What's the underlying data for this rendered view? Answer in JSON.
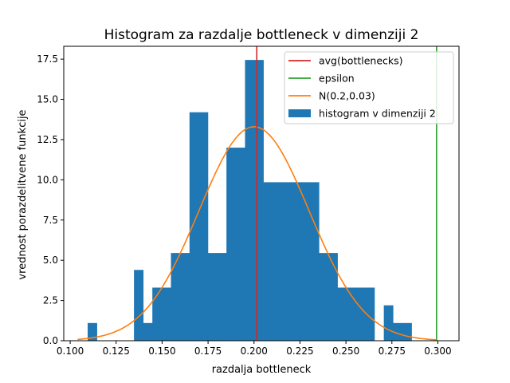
{
  "chart_data": {
    "type": "bar",
    "title": "Histogram za razdalje bottleneck v dimenziji 2",
    "xlabel": "razdalja bottleneck",
    "ylabel": "vrednost porazdelitvene funkcije",
    "xlim": [
      0.0965,
      0.3115
    ],
    "ylim": [
      0.0,
      18.3
    ],
    "xticks": [
      0.1,
      0.125,
      0.15,
      0.175,
      0.2,
      0.225,
      0.25,
      0.275,
      0.3
    ],
    "xtick_labels": [
      "0.100",
      "0.125",
      "0.150",
      "0.175",
      "0.200",
      "0.225",
      "0.250",
      "0.275",
      "0.300"
    ],
    "yticks": [
      0.0,
      2.5,
      5.0,
      7.5,
      10.0,
      12.5,
      15.0,
      17.5
    ],
    "ytick_labels": [
      "0.0",
      "2.5",
      "5.0",
      "7.5",
      "10.0",
      "12.5",
      "15.0",
      "17.5"
    ],
    "grid": false,
    "legend_position": "top-right",
    "histogram": {
      "name": "histogram v dimenziji 2",
      "color": "#1f77b4",
      "bin_edges": [
        0.1095,
        0.1145,
        0.1196,
        0.1246,
        0.1296,
        0.1347,
        0.1397,
        0.1447,
        0.1498,
        0.1548,
        0.1598,
        0.1649,
        0.1699,
        0.1749,
        0.18,
        0.185,
        0.19,
        0.1951,
        0.2001,
        0.2051,
        0.2102,
        0.2152,
        0.2202,
        0.2253,
        0.2303,
        0.2353,
        0.2404,
        0.2454,
        0.2504,
        0.2555,
        0.2605,
        0.2655,
        0.2706,
        0.2756,
        0.2806,
        0.2857,
        0.2907
      ],
      "values": [
        1.1,
        0,
        0,
        0,
        0,
        4.4,
        1.1,
        3.3,
        3.3,
        5.45,
        5.45,
        14.2,
        14.2,
        5.45,
        5.45,
        12.0,
        12.0,
        17.45,
        17.45,
        9.85,
        9.85,
        9.85,
        9.85,
        9.85,
        9.85,
        5.45,
        5.45,
        3.3,
        3.3,
        3.3,
        3.3,
        0,
        2.2,
        1.1,
        1.1,
        0
      ]
    },
    "normal_curve": {
      "name": "N(0.2,0.03)",
      "color": "#ff7f0e",
      "mean": 0.2,
      "std": 0.03,
      "x_range": [
        0.104,
        0.299
      ]
    },
    "vlines": [
      {
        "name": "avg(bottlenecks)",
        "x": 0.2015,
        "color": "#d62728"
      },
      {
        "name": "epsilon",
        "x": 0.2993,
        "color": "#2ca02c"
      }
    ],
    "legend": [
      {
        "label": "avg(bottlenecks)",
        "kind": "line",
        "color": "#d62728"
      },
      {
        "label": "epsilon",
        "kind": "line",
        "color": "#2ca02c"
      },
      {
        "label": "N(0.2,0.03)",
        "kind": "line",
        "color": "#ff7f0e"
      },
      {
        "label": "histogram v dimenziji 2",
        "kind": "patch",
        "color": "#1f77b4"
      }
    ]
  }
}
